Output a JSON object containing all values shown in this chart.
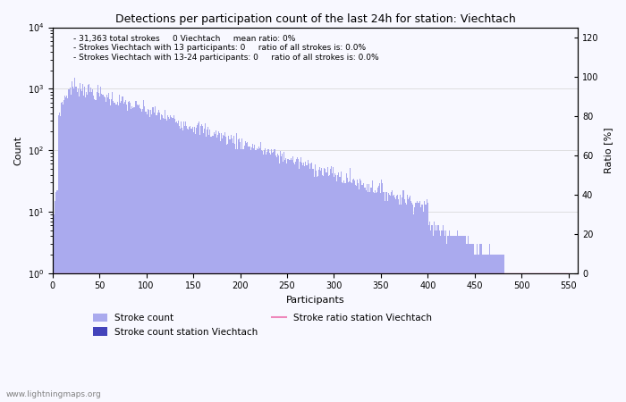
{
  "title": "Detections per participation count of the last 24h for station: Viechtach",
  "xlabel": "Participants",
  "ylabel_left": "Count",
  "ylabel_right": "Ratio [%]",
  "annotation_lines": [
    "31,363 total strokes     0 Viechtach     mean ratio: 0%",
    "Strokes Viechtach with 13 participants: 0     ratio of all strokes is: 0.0%",
    "Strokes Viechtach with 13-24 participants: 0     ratio of all strokes is: 0.0%"
  ],
  "watermark": "www.lightningmaps.org",
  "bar_color": "#aaaaee",
  "station_bar_color": "#4444bb",
  "ratio_line_color": "#ee88bb",
  "xlim": [
    0,
    560
  ],
  "ylim_log": [
    1,
    10000
  ],
  "ylim_right": [
    0,
    125
  ],
  "right_yticks": [
    0,
    20,
    40,
    60,
    80,
    100,
    120
  ],
  "xticks": [
    0,
    50,
    100,
    150,
    200,
    250,
    300,
    350,
    400,
    450,
    500,
    550
  ],
  "legend_labels": [
    "Stroke count",
    "Stroke count station Viechtach",
    "Stroke ratio station Viechtach"
  ],
  "background_color": "#f8f8ff"
}
